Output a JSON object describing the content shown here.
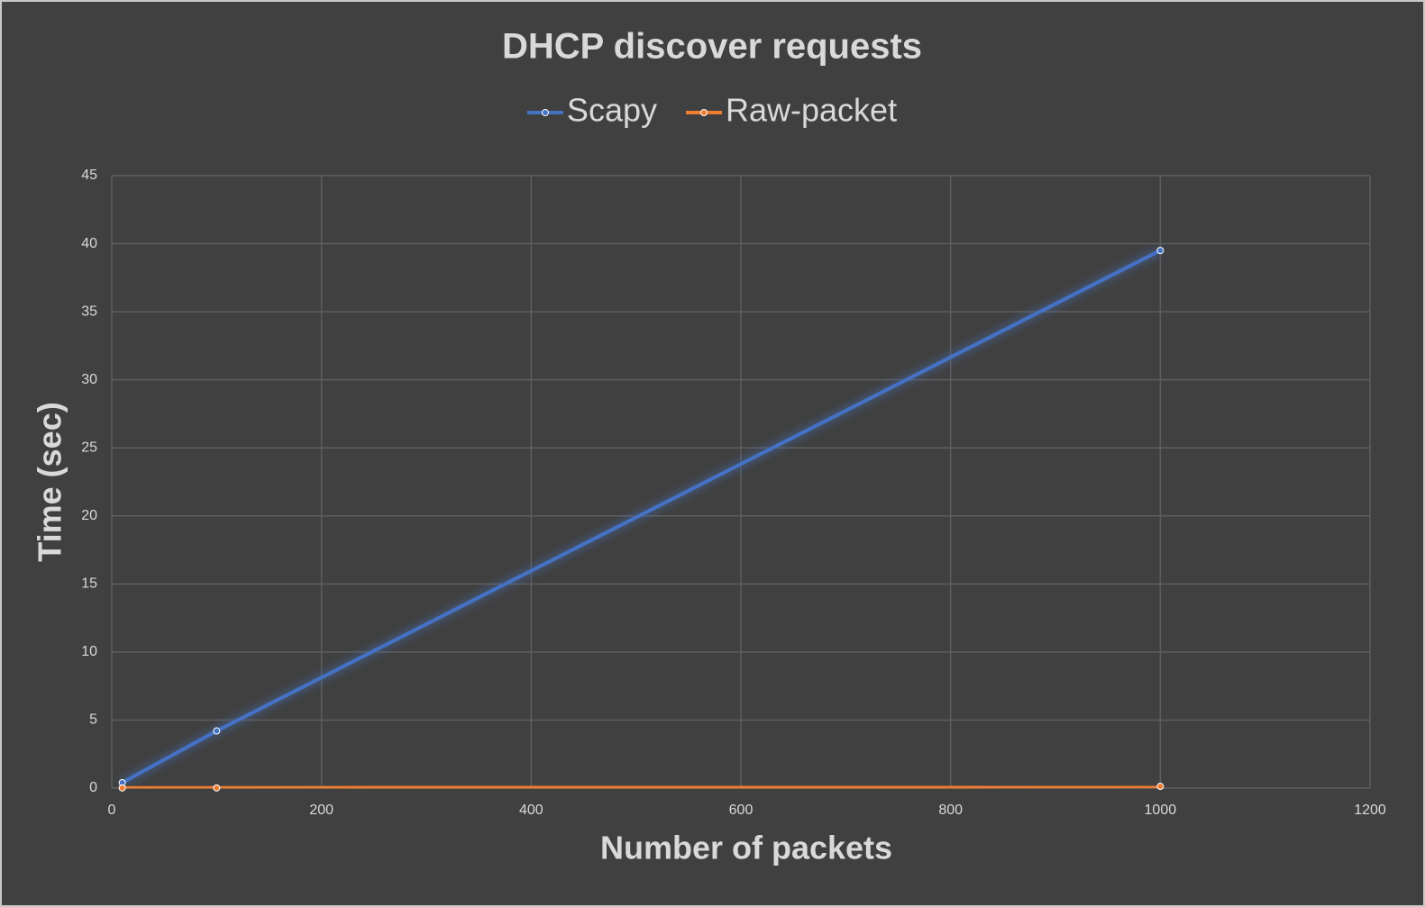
{
  "chart_data": {
    "type": "line",
    "title": "DHCP discover requests",
    "x_label": "Number of packets",
    "y_label": "Time (sec)",
    "x": [
      10,
      100,
      1000
    ],
    "series": [
      {
        "name": "Scapy",
        "color": "#4472c4",
        "values": [
          0.4,
          4.2,
          39.5
        ]
      },
      {
        "name": "Raw-packet",
        "color": "#ed7d31",
        "values": [
          0.01,
          0.01,
          0.13
        ]
      }
    ],
    "xlim": [
      0,
      1200
    ],
    "xticks": [
      0,
      200,
      400,
      600,
      800,
      1000,
      1200
    ],
    "ylim": [
      0,
      45
    ],
    "yticks": [
      0,
      5,
      10,
      15,
      20,
      25,
      30,
      35,
      40,
      45
    ],
    "grid": true,
    "legend": "top"
  }
}
